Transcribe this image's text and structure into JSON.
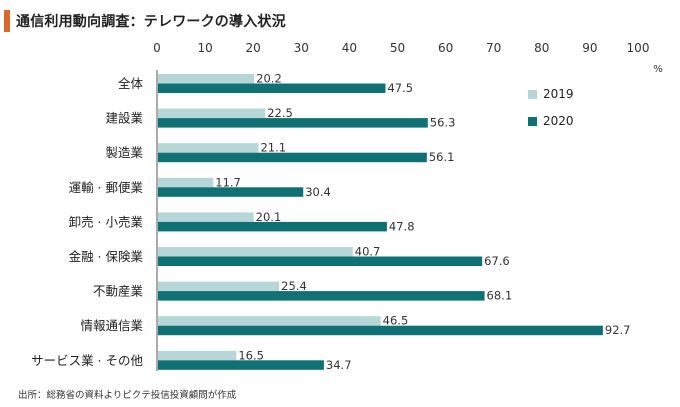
{
  "header": {
    "title": "通信利用動向調査：テレワークの導入状況",
    "accent_color": "#d9682a"
  },
  "source": "出所：総務省の資料よりピクテ投信投資顧問が作成",
  "chart_data": {
    "type": "bar",
    "orientation": "horizontal",
    "title": "通信利用動向調査：テレワークの導入状況",
    "xlabel": "",
    "ylabel": "",
    "unit": "%",
    "xlim": [
      0,
      100
    ],
    "xticks": [
      0,
      10,
      20,
      30,
      40,
      50,
      60,
      70,
      80,
      90,
      100
    ],
    "axis_position": "top",
    "grid": false,
    "legend_placement": "right",
    "categories": [
      "全体",
      "建設業",
      "製造業",
      "運輸・郵便業",
      "卸売・小売業",
      "金融・保険業",
      "不動産業",
      "情報通信業",
      "サービス業・その他"
    ],
    "category_labels": [
      "全体",
      "建設業",
      "製造業",
      "運輸 · 郵便業",
      "卸売 · 小売業",
      "金融 · 保険業",
      "不動産業",
      "情報通信業",
      "サービス業 · その他"
    ],
    "series": [
      {
        "name": "2019",
        "color": "#b7d6d8",
        "values": [
          20.2,
          22.5,
          21.1,
          11.7,
          20.1,
          40.7,
          25.4,
          46.5,
          16.5
        ]
      },
      {
        "name": "2020",
        "color": "#0f7173",
        "values": [
          47.5,
          56.3,
          56.1,
          30.4,
          47.8,
          67.6,
          68.1,
          92.7,
          34.7
        ]
      }
    ]
  }
}
